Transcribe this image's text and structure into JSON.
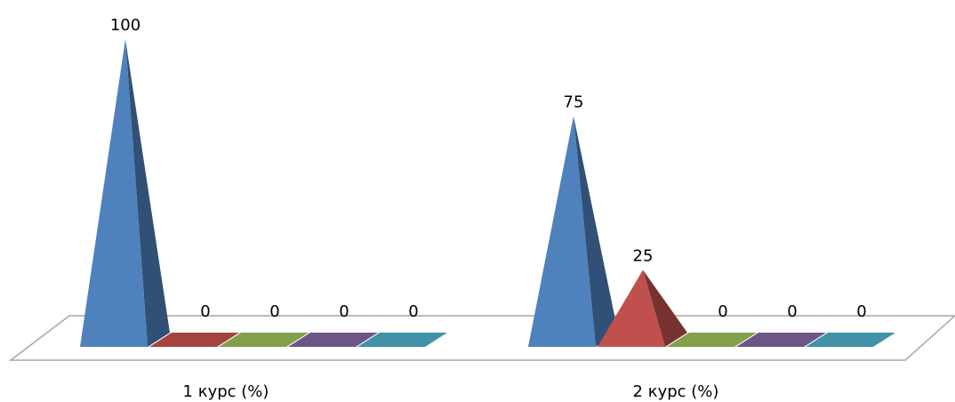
{
  "chart_data": {
    "type": "bar",
    "bar_shape": "pyramid",
    "categories": [
      "1 курс (%)",
      "2 курс (%)"
    ],
    "series": [
      {
        "values": [
          100,
          75
        ],
        "color": "#4f81bd"
      },
      {
        "values": [
          0,
          25
        ],
        "color": "#c0504d"
      },
      {
        "values": [
          0,
          0
        ],
        "color": "#9bbb59"
      },
      {
        "values": [
          0,
          0
        ],
        "color": "#8064a2"
      },
      {
        "values": [
          0,
          0
        ],
        "color": "#4bacc6"
      }
    ],
    "ylim": [
      0,
      100
    ],
    "data_labels": true,
    "grid": false
  }
}
